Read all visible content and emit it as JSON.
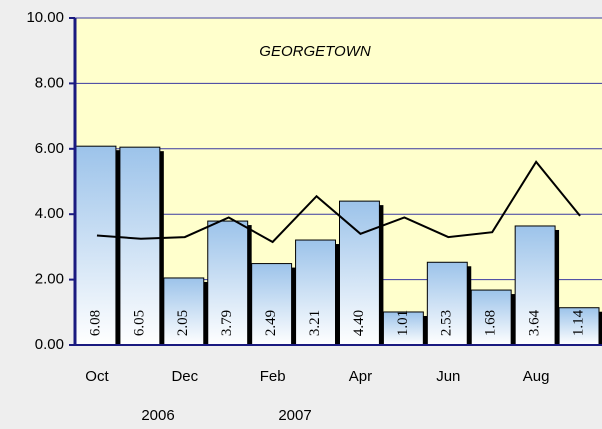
{
  "chart_data": {
    "type": "bar",
    "title": "GEORGETOWN",
    "categories": [
      "Oct",
      null,
      "Dec",
      null,
      "Feb",
      null,
      "Apr",
      null,
      "Jun",
      null,
      "Aug",
      null
    ],
    "year_labels": [
      "2006",
      "2007"
    ],
    "series": [
      {
        "type": "bar",
        "color": "#9cc3ea",
        "values": [
          6.08,
          6.05,
          2.05,
          3.79,
          2.49,
          3.21,
          4.4,
          1.01,
          2.53,
          1.68,
          3.64,
          1.14
        ],
        "value_labels": [
          "6.08",
          "6.05",
          "2.05",
          "3.79",
          "2.49",
          "3.21",
          "4.40",
          "1.01",
          "2.53",
          "1.68",
          "3.64",
          "1.14"
        ]
      },
      {
        "type": "line",
        "color": "#000000",
        "values": [
          3.35,
          3.25,
          3.3,
          3.9,
          3.15,
          4.55,
          3.4,
          3.9,
          3.3,
          3.45,
          5.6,
          3.95
        ]
      }
    ],
    "ylim": [
      0,
      10
    ],
    "yticks": [
      {
        "value": 0,
        "label": "0.00"
      },
      {
        "value": 2,
        "label": "2.00"
      },
      {
        "value": 4,
        "label": "4.00"
      },
      {
        "value": 6,
        "label": "6.00"
      },
      {
        "value": 8,
        "label": "8.00"
      },
      {
        "value": 10,
        "label": "10.00"
      }
    ],
    "grid": true
  }
}
